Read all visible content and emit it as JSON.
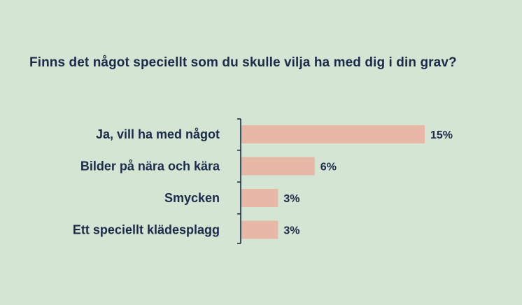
{
  "chart_data": {
    "type": "bar",
    "orientation": "horizontal",
    "title": "Finns det något speciellt som du skulle vilja ha med dig i din grav?",
    "categories": [
      "Ja, vill ha med något",
      "Bilder på nära och kära",
      "Smycken",
      "Ett speciellt klädesplagg"
    ],
    "values": [
      15,
      6,
      3,
      3
    ],
    "value_labels": [
      "15%",
      "6%",
      "3%",
      "3%"
    ],
    "unit": "%",
    "xlim": [
      0,
      15
    ],
    "grid": false,
    "legend": "none",
    "colors": {
      "background": "#d4e6d3",
      "bar": "#e8b8a6",
      "text": "#1c2b4a",
      "axis": "#1c2b4a"
    }
  }
}
